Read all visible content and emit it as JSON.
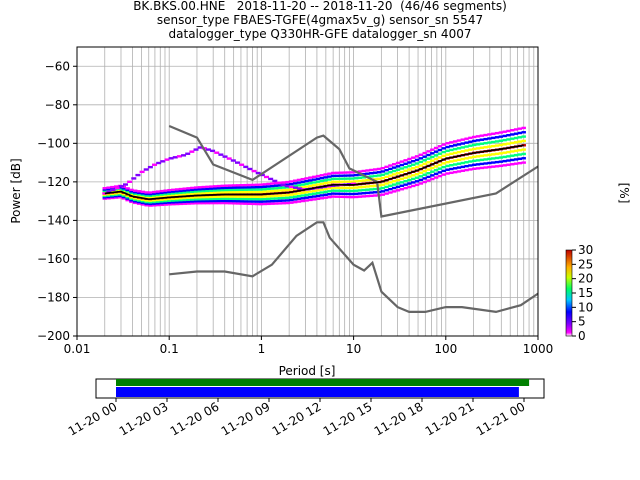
{
  "title_lines": [
    "BK.BKS.00.HNE   2018-11-20 -- 2018-11-20  (46/46 segments)",
    "sensor_type FBAES-TGFE(4gmax5v_g) sensor_sn 5547",
    "datalogger_type Q330HR-GFE datalogger_sn 4007"
  ],
  "chart_data": {
    "type": "heatmap",
    "xlabel": "Period [s]",
    "ylabel": "Power [dB]",
    "xscale": "log",
    "xlim": [
      0.01,
      1000
    ],
    "ylim": [
      -200,
      -50
    ],
    "x_ticks": [
      {
        "v": 0.01,
        "t": "0.01"
      },
      {
        "v": 0.1,
        "t": "0.1"
      },
      {
        "v": 1,
        "t": "1"
      },
      {
        "v": 10,
        "t": "10"
      },
      {
        "v": 100,
        "t": "100"
      },
      {
        "v": 1000,
        "t": "1000"
      }
    ],
    "y_ticks": [
      {
        "v": -60,
        "t": "−60"
      },
      {
        "v": -80,
        "t": "−80"
      },
      {
        "v": -100,
        "t": "−100"
      },
      {
        "v": -120,
        "t": "−120"
      },
      {
        "v": -140,
        "t": "−140"
      },
      {
        "v": -160,
        "t": "−160"
      },
      {
        "v": -180,
        "t": "−180"
      },
      {
        "v": -200,
        "t": "−200"
      }
    ],
    "grid": true,
    "reference_curves": [
      {
        "points": [
          [
            0.1,
            -91
          ],
          [
            0.2,
            -97
          ],
          [
            0.3,
            -111
          ],
          [
            0.8,
            -119
          ],
          [
            4,
            -97
          ],
          [
            4.7,
            -96
          ],
          [
            7,
            -103
          ],
          [
            9,
            -113
          ],
          [
            18,
            -120
          ],
          [
            20,
            -138
          ],
          [
            350,
            -126
          ],
          [
            1000,
            -112
          ]
        ]
      },
      {
        "points": [
          [
            0.1,
            -168
          ],
          [
            0.2,
            -166.5
          ],
          [
            0.4,
            -166.5
          ],
          [
            0.8,
            -169
          ],
          [
            1.3,
            -163
          ],
          [
            2.4,
            -148
          ],
          [
            4,
            -141
          ],
          [
            4.7,
            -141
          ],
          [
            5.5,
            -149
          ],
          [
            10,
            -163
          ],
          [
            13,
            -166
          ],
          [
            16,
            -162
          ],
          [
            20,
            -177
          ],
          [
            30,
            -185
          ],
          [
            40,
            -187.5
          ],
          [
            60,
            -187.5
          ],
          [
            100,
            -185
          ],
          [
            150,
            -185
          ],
          [
            350,
            -187.5
          ],
          [
            650,
            -184
          ],
          [
            1000,
            -178
          ]
        ]
      }
    ],
    "mean_line": [
      [
        0.02,
        -126
      ],
      [
        0.03,
        -125
      ],
      [
        0.04,
        -127.5
      ],
      [
        0.06,
        -129
      ],
      [
        0.1,
        -128
      ],
      [
        0.2,
        -127
      ],
      [
        0.4,
        -126.5
      ],
      [
        1,
        -126.5
      ],
      [
        2,
        -125.5
      ],
      [
        4,
        -123
      ],
      [
        6,
        -121.5
      ],
      [
        10,
        -121.5
      ],
      [
        20,
        -120
      ],
      [
        50,
        -114
      ],
      [
        100,
        -108
      ],
      [
        200,
        -105
      ],
      [
        400,
        -103
      ],
      [
        700,
        -101
      ]
    ],
    "spread_line": [
      [
        0.02,
        -126
      ],
      [
        0.035,
        -121
      ],
      [
        0.05,
        -115
      ],
      [
        0.07,
        -111
      ],
      [
        0.1,
        -108
      ],
      [
        0.15,
        -106
      ],
      [
        0.22,
        -102
      ],
      [
        0.3,
        -104
      ],
      [
        0.5,
        -109
      ],
      [
        0.8,
        -114
      ],
      [
        1.2,
        -118
      ],
      [
        1.8,
        -122
      ],
      [
        3,
        -124
      ],
      [
        6,
        -122
      ],
      [
        10,
        -121
      ]
    ],
    "colorbar": {
      "label": "[%]",
      "ticks": [
        "0",
        "5",
        "10",
        "15",
        "20",
        "25",
        "30"
      ],
      "range": [
        0,
        30
      ]
    },
    "coverage": {
      "ticks": [
        "11-20 00",
        "11-20 03",
        "11-20 06",
        "11-20 09",
        "11-20 12",
        "11-20 15",
        "11-20 18",
        "11-20 21",
        "11-21 00"
      ],
      "green_range_hours": [
        0,
        24.3
      ],
      "blue_range_hours": [
        0,
        23.7
      ],
      "colors": {
        "green": "#008000",
        "blue": "#0000ff"
      }
    }
  }
}
